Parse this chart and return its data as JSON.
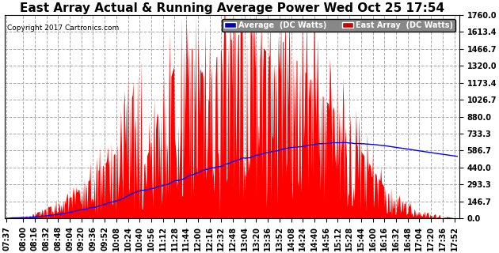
{
  "title": "East Array Actual & Running Average Power Wed Oct 25 17:54",
  "copyright": "Copyright 2017 Cartronics.com",
  "ylabel_right_ticks": [
    0.0,
    146.7,
    293.3,
    440.0,
    586.7,
    733.3,
    880.0,
    1026.7,
    1173.4,
    1320.0,
    1466.7,
    1613.4,
    1760.0
  ],
  "ymax": 1760.0,
  "ymin": 0.0,
  "legend_average_label": "Average  (DC Watts)",
  "legend_east_label": "East Array  (DC Watts)",
  "legend_avg_bg": "#0000bb",
  "legend_east_bg": "#cc0000",
  "bg_color": "#ffffff",
  "plot_bg_color": "#ffffff",
  "grid_color": "#aaaaaa",
  "bar_color": "#ff0000",
  "avg_line_color": "#0000ff",
  "title_fontsize": 11,
  "tick_label_fontsize": 7,
  "x_tick_labels": [
    "07:37",
    "08:00",
    "08:16",
    "08:32",
    "08:48",
    "09:04",
    "09:20",
    "09:36",
    "09:52",
    "10:08",
    "10:24",
    "10:40",
    "10:56",
    "11:12",
    "11:28",
    "11:44",
    "12:00",
    "12:16",
    "12:32",
    "12:48",
    "13:04",
    "13:20",
    "13:36",
    "13:52",
    "14:08",
    "14:24",
    "14:40",
    "14:56",
    "15:12",
    "15:28",
    "15:44",
    "16:00",
    "16:16",
    "16:32",
    "16:48",
    "17:04",
    "17:20",
    "17:36",
    "17:52"
  ],
  "x_tick_positions": [
    0,
    23,
    39,
    55,
    71,
    87,
    103,
    119,
    135,
    151,
    167,
    183,
    199,
    215,
    231,
    247,
    263,
    279,
    295,
    311,
    327,
    343,
    359,
    375,
    391,
    407,
    423,
    439,
    455,
    471,
    487,
    503,
    519,
    535,
    551,
    567,
    583,
    599,
    615
  ]
}
